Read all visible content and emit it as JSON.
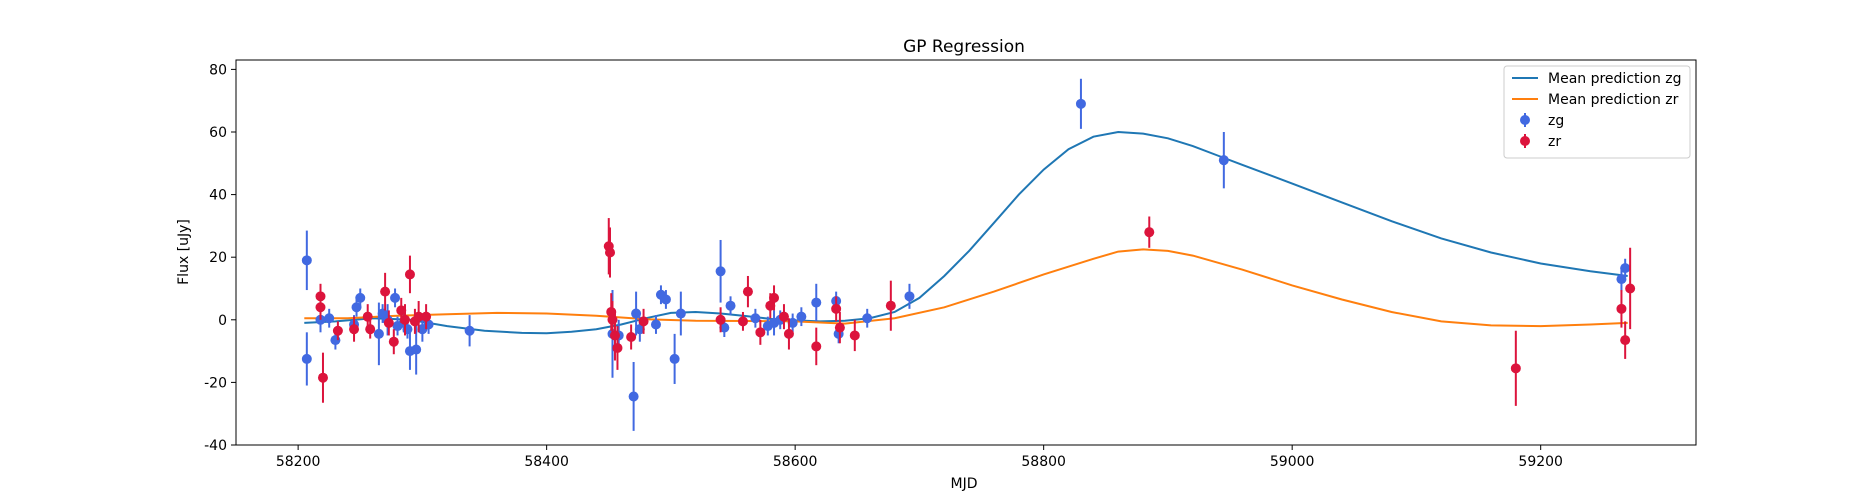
{
  "chart_data": {
    "type": "scatter",
    "title": "GP Regression",
    "xlabel": "MJD",
    "ylabel": "Flux [uJy]",
    "xlim": [
      58150,
      59325
    ],
    "ylim": [
      -40,
      83
    ],
    "xticks": [
      58200,
      58400,
      58600,
      58800,
      59000,
      59200
    ],
    "yticks": [
      -40,
      -20,
      0,
      20,
      40,
      60,
      80
    ],
    "grid": false,
    "legend_position": "top-right",
    "colors": {
      "zg_line": "#1f77b4",
      "zr_line": "#ff7f0e",
      "zg_points": "#4169e1",
      "zr_points": "#dc143c"
    },
    "legend": [
      {
        "label": "Mean prediction zg",
        "kind": "line",
        "color": "#1f77b4"
      },
      {
        "label": "Mean prediction zr",
        "kind": "line",
        "color": "#ff7f0e"
      },
      {
        "label": "zg",
        "kind": "errorbar",
        "color": "#4169e1"
      },
      {
        "label": "zr",
        "kind": "errorbar",
        "color": "#dc143c"
      }
    ],
    "lines": [
      {
        "name": "Mean prediction zg",
        "color": "#1f77b4",
        "x": [
          58205,
          58230,
          58260,
          58290,
          58320,
          58350,
          58380,
          58400,
          58420,
          58440,
          58460,
          58480,
          58500,
          58520,
          58540,
          58560,
          58580,
          58600,
          58620,
          58640,
          58660,
          58680,
          58700,
          58720,
          58740,
          58760,
          58780,
          58800,
          58820,
          58840,
          58860,
          58880,
          58900,
          58920,
          58940,
          58960,
          58980,
          59000,
          59040,
          59080,
          59120,
          59160,
          59200,
          59240,
          59270
        ],
        "y": [
          -1,
          -0.5,
          0.5,
          0,
          -2,
          -3.5,
          -4.2,
          -4.3,
          -3.8,
          -3,
          -1.5,
          0.5,
          2.2,
          2.5,
          2,
          1.2,
          0.3,
          -0.2,
          -0.5,
          -0.3,
          0.5,
          2.5,
          7,
          14,
          22,
          31,
          40,
          48,
          54.5,
          58.5,
          60,
          59.5,
          58,
          55.5,
          52.5,
          49.5,
          46.5,
          43.5,
          37.5,
          31.5,
          26,
          21.5,
          18,
          15.5,
          14
        ]
      },
      {
        "name": "Mean prediction zr",
        "color": "#ff7f0e",
        "x": [
          58205,
          58240,
          58280,
          58320,
          58360,
          58400,
          58440,
          58480,
          58520,
          58560,
          58600,
          58640,
          58680,
          58720,
          58760,
          58800,
          58840,
          58860,
          58880,
          58900,
          58920,
          58960,
          59000,
          59040,
          59080,
          59120,
          59160,
          59200,
          59240,
          59270
        ],
        "y": [
          0.5,
          0.5,
          1.3,
          1.8,
          2.2,
          2,
          1.3,
          0.2,
          -0.3,
          -0.4,
          -0.5,
          -1.2,
          0.5,
          4,
          9,
          14.5,
          19.5,
          21.8,
          22.5,
          22,
          20.5,
          16,
          11,
          6.5,
          2.5,
          -0.5,
          -1.8,
          -2,
          -1.5,
          -1
        ]
      }
    ],
    "series": [
      {
        "name": "zg",
        "color": "#4169e1",
        "points": [
          {
            "x": 58207,
            "y": 19,
            "err": 9.5
          },
          {
            "x": 58207,
            "y": -12.5,
            "err": 8.5
          },
          {
            "x": 58218,
            "y": 0,
            "err": 4
          },
          {
            "x": 58225,
            "y": 0.5,
            "err": 3
          },
          {
            "x": 58230,
            "y": -6.5,
            "err": 3
          },
          {
            "x": 58245,
            "y": -1.5,
            "err": 3
          },
          {
            "x": 58247,
            "y": 4,
            "err": 3
          },
          {
            "x": 58250,
            "y": 7,
            "err": 3
          },
          {
            "x": 58265,
            "y": -4.5,
            "err": 10
          },
          {
            "x": 58268,
            "y": 2,
            "err": 3
          },
          {
            "x": 58272,
            "y": 0,
            "err": 5
          },
          {
            "x": 58278,
            "y": 7,
            "err": 3
          },
          {
            "x": 58280,
            "y": -2,
            "err": 3
          },
          {
            "x": 58285,
            "y": -1,
            "err": 3
          },
          {
            "x": 58288,
            "y": -3,
            "err": 3
          },
          {
            "x": 58290,
            "y": -10,
            "err": 6
          },
          {
            "x": 58295,
            "y": -9.5,
            "err": 8
          },
          {
            "x": 58300,
            "y": -3,
            "err": 4
          },
          {
            "x": 58305,
            "y": -1.5,
            "err": 3
          },
          {
            "x": 58338,
            "y": -3.5,
            "err": 5
          },
          {
            "x": 58453,
            "y": -4.5,
            "err": 14
          },
          {
            "x": 58458,
            "y": -5,
            "err": 5
          },
          {
            "x": 58470,
            "y": -24.5,
            "err": 11
          },
          {
            "x": 58472,
            "y": 2,
            "err": 7
          },
          {
            "x": 58475,
            "y": -3,
            "err": 4
          },
          {
            "x": 58488,
            "y": -1.5,
            "err": 3
          },
          {
            "x": 58492,
            "y": 8,
            "err": 3
          },
          {
            "x": 58496,
            "y": 6.5,
            "err": 3
          },
          {
            "x": 58503,
            "y": -12.5,
            "err": 8
          },
          {
            "x": 58508,
            "y": 2,
            "err": 7
          },
          {
            "x": 58540,
            "y": 15.5,
            "err": 10
          },
          {
            "x": 58543,
            "y": -2.5,
            "err": 3
          },
          {
            "x": 58548,
            "y": 4.5,
            "err": 3
          },
          {
            "x": 58568,
            "y": 0.5,
            "err": 3
          },
          {
            "x": 58578,
            "y": -2,
            "err": 3
          },
          {
            "x": 58583,
            "y": -1,
            "err": 4
          },
          {
            "x": 58588,
            "y": 0,
            "err": 3
          },
          {
            "x": 58598,
            "y": -1,
            "err": 3
          },
          {
            "x": 58605,
            "y": 1,
            "err": 3
          },
          {
            "x": 58617,
            "y": 5.5,
            "err": 6
          },
          {
            "x": 58633,
            "y": 6,
            "err": 3
          },
          {
            "x": 58635,
            "y": -4.5,
            "err": 3
          },
          {
            "x": 58658,
            "y": 0.5,
            "err": 3
          },
          {
            "x": 58692,
            "y": 7.5,
            "err": 4
          },
          {
            "x": 58830,
            "y": 69,
            "err": 8
          },
          {
            "x": 58945,
            "y": 51,
            "err": 9
          },
          {
            "x": 59265,
            "y": 13,
            "err": 4
          },
          {
            "x": 59268,
            "y": 16.5,
            "err": 3
          }
        ]
      },
      {
        "name": "zr",
        "color": "#dc143c",
        "points": [
          {
            "x": 58218,
            "y": 7.5,
            "err": 4
          },
          {
            "x": 58218,
            "y": 4,
            "err": 4
          },
          {
            "x": 58220,
            "y": -18.5,
            "err": 8
          },
          {
            "x": 58232,
            "y": -3.5,
            "err": 3
          },
          {
            "x": 58245,
            "y": -3,
            "err": 4
          },
          {
            "x": 58256,
            "y": 1,
            "err": 4
          },
          {
            "x": 58258,
            "y": -3,
            "err": 3
          },
          {
            "x": 58270,
            "y": 9,
            "err": 6
          },
          {
            "x": 58273,
            "y": -1,
            "err": 4
          },
          {
            "x": 58277,
            "y": -7,
            "err": 4
          },
          {
            "x": 58283,
            "y": 3,
            "err": 4
          },
          {
            "x": 58286,
            "y": 0,
            "err": 5
          },
          {
            "x": 58290,
            "y": 14.5,
            "err": 6
          },
          {
            "x": 58294,
            "y": -0.5,
            "err": 4
          },
          {
            "x": 58297,
            "y": 1,
            "err": 5
          },
          {
            "x": 58303,
            "y": 1,
            "err": 4
          },
          {
            "x": 58450,
            "y": 23.5,
            "err": 9
          },
          {
            "x": 58451,
            "y": 21.5,
            "err": 8
          },
          {
            "x": 58452,
            "y": 2.5,
            "err": 6
          },
          {
            "x": 58453,
            "y": 0,
            "err": 6
          },
          {
            "x": 58455,
            "y": -5,
            "err": 8
          },
          {
            "x": 58457,
            "y": -9,
            "err": 7
          },
          {
            "x": 58468,
            "y": -5.5,
            "err": 4
          },
          {
            "x": 58478,
            "y": -0.5,
            "err": 4
          },
          {
            "x": 58540,
            "y": 0,
            "err": 4
          },
          {
            "x": 58558,
            "y": -0.5,
            "err": 3
          },
          {
            "x": 58562,
            "y": 9,
            "err": 5
          },
          {
            "x": 58572,
            "y": -4,
            "err": 4
          },
          {
            "x": 58580,
            "y": 4.5,
            "err": 4
          },
          {
            "x": 58583,
            "y": 7,
            "err": 4
          },
          {
            "x": 58591,
            "y": 1,
            "err": 4
          },
          {
            "x": 58595,
            "y": -4.5,
            "err": 5
          },
          {
            "x": 58617,
            "y": -8.5,
            "err": 6
          },
          {
            "x": 58633,
            "y": 3.5,
            "err": 4
          },
          {
            "x": 58636,
            "y": -2.5,
            "err": 5
          },
          {
            "x": 58648,
            "y": -5,
            "err": 5
          },
          {
            "x": 58677,
            "y": 4.5,
            "err": 8
          },
          {
            "x": 58885,
            "y": 28,
            "err": 5
          },
          {
            "x": 59180,
            "y": -15.5,
            "err": 12
          },
          {
            "x": 59265,
            "y": 3.5,
            "err": 6
          },
          {
            "x": 59268,
            "y": -6.5,
            "err": 6
          },
          {
            "x": 59272,
            "y": 10,
            "err": 13
          }
        ]
      }
    ]
  }
}
